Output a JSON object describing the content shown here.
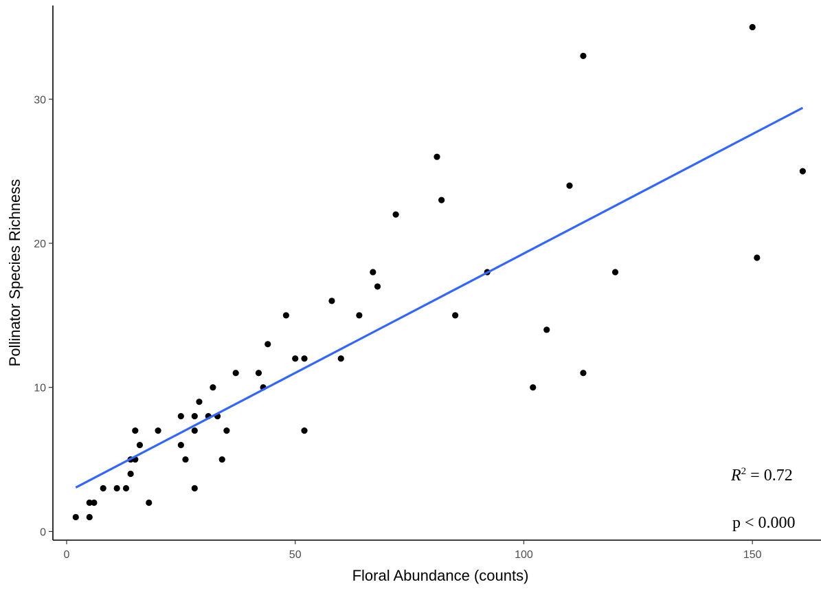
{
  "chart_data": {
    "type": "scatter",
    "title": "",
    "xlabel": "Floral Abundance (counts)",
    "ylabel": "Pollinator Species Richness",
    "xlim": [
      -3,
      165
    ],
    "ylim": [
      -0.6,
      36.5
    ],
    "x_ticks": [
      0,
      50,
      100,
      150
    ],
    "y_ticks": [
      0,
      10,
      20,
      30
    ],
    "grid": false,
    "colors": {
      "points": "#000000",
      "fit_line": "#3366ff",
      "axis": "#000000"
    },
    "points": [
      [
        2,
        1
      ],
      [
        5,
        1
      ],
      [
        5,
        2
      ],
      [
        6,
        2
      ],
      [
        8,
        3
      ],
      [
        11,
        3
      ],
      [
        13,
        3
      ],
      [
        14,
        4
      ],
      [
        14,
        5
      ],
      [
        15,
        5
      ],
      [
        15,
        7
      ],
      [
        16,
        6
      ],
      [
        18,
        2
      ],
      [
        20,
        7
      ],
      [
        25,
        8
      ],
      [
        25,
        6
      ],
      [
        26,
        5
      ],
      [
        28,
        8
      ],
      [
        28,
        7
      ],
      [
        28,
        3
      ],
      [
        29,
        9
      ],
      [
        31,
        8
      ],
      [
        32,
        10
      ],
      [
        33,
        8
      ],
      [
        34,
        5
      ],
      [
        35,
        7
      ],
      [
        37,
        11
      ],
      [
        42,
        11
      ],
      [
        43,
        10
      ],
      [
        44,
        13
      ],
      [
        48,
        15
      ],
      [
        50,
        12
      ],
      [
        52,
        12
      ],
      [
        52,
        7
      ],
      [
        58,
        16
      ],
      [
        60,
        12
      ],
      [
        64,
        15
      ],
      [
        67,
        18
      ],
      [
        68,
        17
      ],
      [
        72,
        22
      ],
      [
        81,
        26
      ],
      [
        82,
        23
      ],
      [
        85,
        15
      ],
      [
        92,
        18
      ],
      [
        102,
        10
      ],
      [
        105,
        14
      ],
      [
        110,
        24
      ],
      [
        113,
        33
      ],
      [
        113,
        11
      ],
      [
        120,
        18
      ],
      [
        150,
        35
      ],
      [
        151,
        19
      ],
      [
        161,
        25
      ]
    ],
    "fit_line": {
      "x": [
        2,
        161
      ],
      "y": [
        3.05,
        29.4
      ]
    },
    "annotations": {
      "r2_prefix": "R",
      "r2_sup": "2",
      "r2_value": " = 0.72",
      "p_value": "p < 0.000"
    }
  }
}
